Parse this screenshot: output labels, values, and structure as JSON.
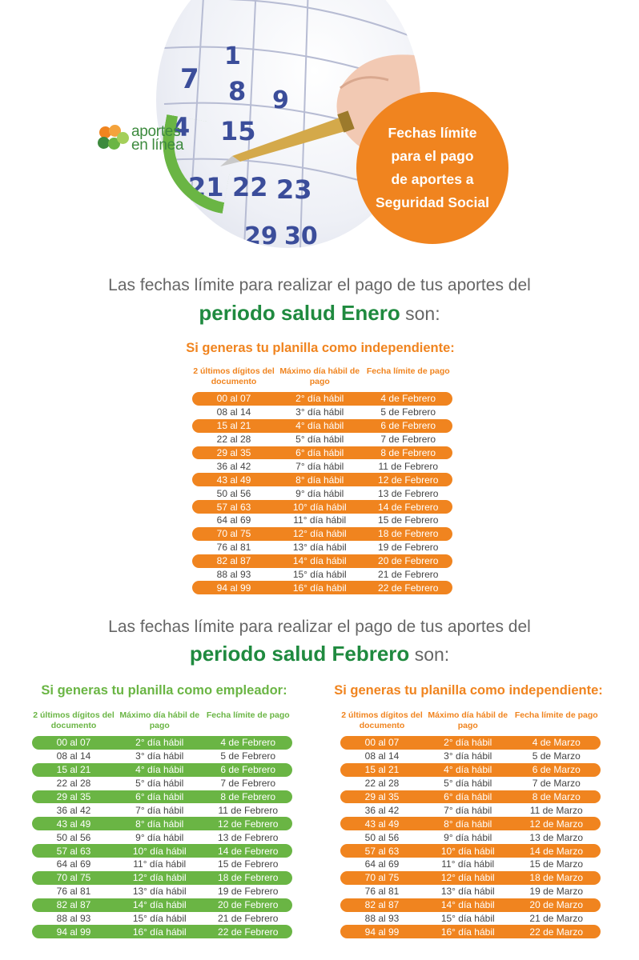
{
  "header": {
    "logo_line1": "aportes",
    "logo_line2": "en línea",
    "badge_text": "Fechas límite\npara el pago\nde aportes a\nSeguridad Social"
  },
  "colors": {
    "orange": "#f0841f",
    "green": "#6ab544",
    "dark_green": "#1f8a3f"
  },
  "sections": [
    {
      "lead": "Las fechas límite para realizar el pago de tus aportes del",
      "period": "periodo salud Enero",
      "son": " son:"
    },
    {
      "lead": "Las fechas límite para realizar el pago de tus aportes del",
      "period": "periodo salud Febrero",
      "son": " son:"
    }
  ],
  "headers": {
    "col1": "2 últimos dígitos del documento",
    "col2": "Máximo día hábil de pago",
    "col3": "Fecha límite de pago"
  },
  "tables": [
    {
      "title": "Si generas tu planilla como independiente:",
      "rows": [
        [
          "00 al 07",
          "2° día hábil",
          "4 de Febrero"
        ],
        [
          "08 al 14",
          "3° día hábil",
          "5 de Febrero"
        ],
        [
          "15 al 21",
          "4° día hábil",
          "6 de Febrero"
        ],
        [
          "22 al 28",
          "5° día hábil",
          "7 de Febrero"
        ],
        [
          "29 al 35",
          "6° día hábil",
          "8 de Febrero"
        ],
        [
          "36 al 42",
          "7° día hábil",
          "11 de Febrero"
        ],
        [
          "43 al 49",
          "8° día hábil",
          "12 de Febrero"
        ],
        [
          "50 al 56",
          "9° día hábil",
          "13 de Febrero"
        ],
        [
          "57 al 63",
          "10° día hábil",
          "14 de Febrero"
        ],
        [
          "64 al 69",
          "11° día hábil",
          "15 de Febrero"
        ],
        [
          "70 al 75",
          "12° día hábil",
          "18 de Febrero"
        ],
        [
          "76 al 81",
          "13° día hábil",
          "19 de Febrero"
        ],
        [
          "82 al 87",
          "14° día hábil",
          "20 de Febrero"
        ],
        [
          "88 al 93",
          "15° día hábil",
          "21 de Febrero"
        ],
        [
          "94 al 99",
          "16° día hábil",
          "22 de Febrero"
        ]
      ]
    },
    {
      "title": "Si generas tu planilla como empleador:",
      "rows": [
        [
          "00 al 07",
          "2° día hábil",
          "4 de Febrero"
        ],
        [
          "08 al 14",
          "3° día hábil",
          "5 de Febrero"
        ],
        [
          "15 al 21",
          "4° día hábil",
          "6 de Febrero"
        ],
        [
          "22 al 28",
          "5° día hábil",
          "7 de Febrero"
        ],
        [
          "29 al 35",
          "6° día hábil",
          "8 de Febrero"
        ],
        [
          "36 al 42",
          "7° día hábil",
          "11 de Febrero"
        ],
        [
          "43 al 49",
          "8° día hábil",
          "12 de Febrero"
        ],
        [
          "50 al 56",
          "9° día hábil",
          "13 de Febrero"
        ],
        [
          "57 al 63",
          "10° día hábil",
          "14 de Febrero"
        ],
        [
          "64 al 69",
          "11° día hábil",
          "15 de Febrero"
        ],
        [
          "70 al 75",
          "12° día hábil",
          "18 de Febrero"
        ],
        [
          "76 al 81",
          "13° día hábil",
          "19 de Febrero"
        ],
        [
          "82 al 87",
          "14° día hábil",
          "20 de Febrero"
        ],
        [
          "88 al 93",
          "15° día hábil",
          "21 de Febrero"
        ],
        [
          "94 al 99",
          "16° día hábil",
          "22 de Febrero"
        ]
      ]
    },
    {
      "title": "Si generas tu planilla como independiente:",
      "rows": [
        [
          "00 al 07",
          "2° día hábil",
          "4 de Marzo"
        ],
        [
          "08 al 14",
          "3° día hábil",
          "5 de Marzo"
        ],
        [
          "15 al 21",
          "4° día hábil",
          "6 de Marzo"
        ],
        [
          "22 al 28",
          "5° día hábil",
          "7 de Marzo"
        ],
        [
          "29 al 35",
          "6° día hábil",
          "8 de Marzo"
        ],
        [
          "36 al 42",
          "7° día hábil",
          "11 de Marzo"
        ],
        [
          "43 al 49",
          "8° día hábil",
          "12 de Marzo"
        ],
        [
          "50 al 56",
          "9° día hábil",
          "13 de Marzo"
        ],
        [
          "57 al 63",
          "10° día hábil",
          "14 de Marzo"
        ],
        [
          "64 al 69",
          "11° día hábil",
          "15 de Marzo"
        ],
        [
          "70 al 75",
          "12° día hábil",
          "18 de Marzo"
        ],
        [
          "76 al 81",
          "13° día hábil",
          "19 de Marzo"
        ],
        [
          "82 al 87",
          "14° día hábil",
          "20 de Marzo"
        ],
        [
          "88 al 93",
          "15° día hábil",
          "21 de Marzo"
        ],
        [
          "94 al 99",
          "16° día hábil",
          "22 de Marzo"
        ]
      ]
    }
  ]
}
